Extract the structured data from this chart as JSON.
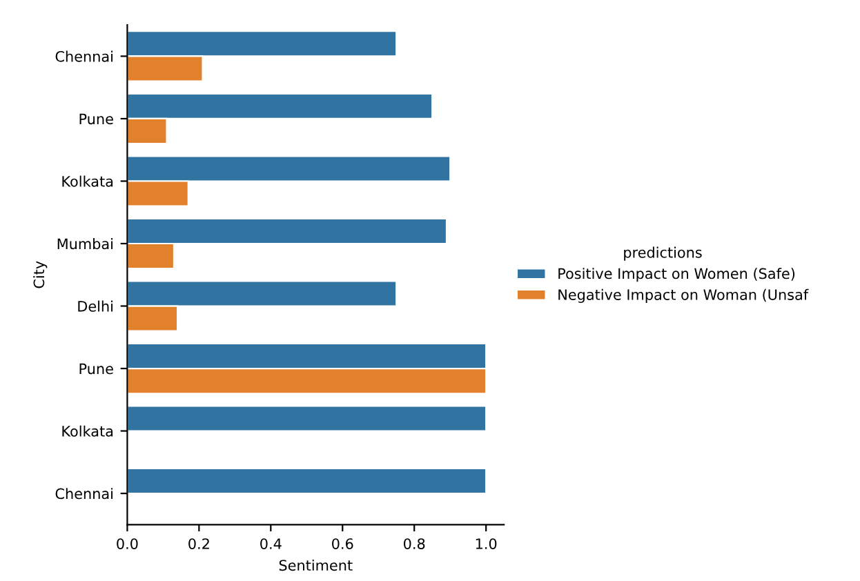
{
  "chart_data": {
    "type": "bar",
    "orientation": "horizontal",
    "xlabel": "Sentiment",
    "ylabel": "City",
    "legend_title": "predictions",
    "legend": "right",
    "categories": [
      "Chennai",
      "Pune",
      "Kolkata",
      "Mumbai",
      "Delhi",
      "Pune",
      "Kolkata",
      "Chennai"
    ],
    "series": [
      {
        "name": "Positive Impact on Women (Safe)",
        "color": "#3274a1",
        "values": [
          0.75,
          0.85,
          0.9,
          0.89,
          0.75,
          1.0,
          1.0,
          1.0
        ]
      },
      {
        "name": "Negative Impact on Woman (Unsaf",
        "color": "#e1812c",
        "values": [
          0.21,
          0.11,
          0.17,
          0.13,
          0.14,
          1.0,
          null,
          null
        ]
      }
    ],
    "xlim": [
      0,
      1.05
    ],
    "xticks": [
      {
        "value": 0,
        "label": "0.0"
      },
      {
        "value": 0.2,
        "label": "0.2"
      },
      {
        "value": 0.4,
        "label": "0.4"
      },
      {
        "value": 0.6,
        "label": "0.6"
      },
      {
        "value": 0.8,
        "label": "0.8"
      },
      {
        "value": 1.0,
        "label": "1.0"
      }
    ],
    "grid": false
  }
}
